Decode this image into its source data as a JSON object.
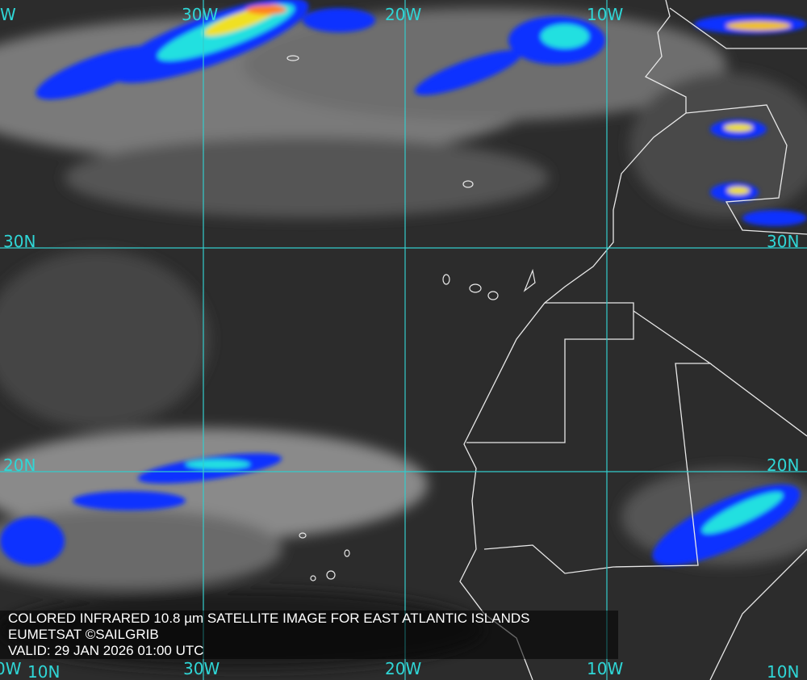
{
  "caption": {
    "line1": "COLORED INFRARED 10.8 µm SATELLITE IMAGE FOR EAST ATLANTIC ISLANDS",
    "line2": "EUMETSAT ©SAILGRIB",
    "line3": "VALID:  29 JAN 2026 01:00 UTC"
  },
  "grid": {
    "color": "#33cccc",
    "top_labels": [
      "W",
      "30W",
      "20W",
      "10W"
    ],
    "bottom_labels": [
      "0W",
      "30W",
      "20W",
      "10W"
    ],
    "left_labels": [
      "30N",
      "20N",
      "10N"
    ],
    "right_labels": [
      "30N",
      "20N",
      "10N"
    ]
  },
  "colors": {
    "coast": "#e8e8e8",
    "cold_cloud_blue": "#1030ff",
    "cyan": "#20e0e0",
    "yellow": "#f0e020",
    "orange": "#ff8020"
  }
}
